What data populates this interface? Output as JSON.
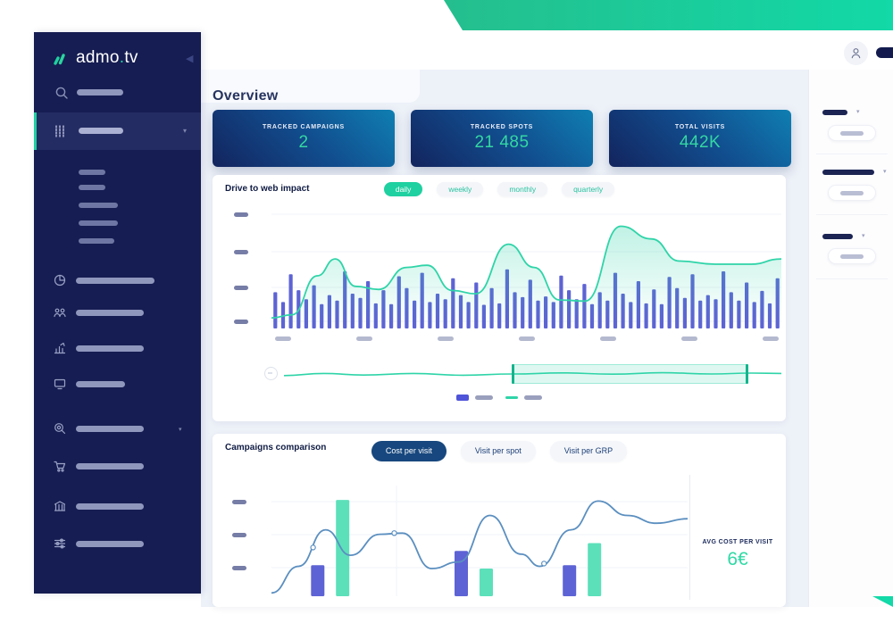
{
  "colors": {
    "sidebar_bg": "#161d52",
    "sidebar_active_bg": "#242c64",
    "accent_teal": "#1fd0a0",
    "purple_bar": "#5d63d4",
    "teal_line": "#2fd4a8",
    "mint_bar": "#5ce0ba",
    "blue_line": "#5b8fc0",
    "navy_text": "#101c44",
    "page_bg": "#edf1f8",
    "stat_gradient": [
      "#13245e",
      "#0f7fb2"
    ],
    "banner_gradient": [
      "#25be8d",
      "#12d9a7"
    ]
  },
  "sidebar": {
    "logo_text": "admo.tv",
    "collapse_glyph": "‹",
    "search_placeholder_width": 52,
    "active_item": {
      "icon": "equalizer-icon",
      "placeholder_width": 50,
      "caret": "▾"
    },
    "subitem_widths": [
      30,
      30,
      44,
      44,
      40
    ],
    "nav_items": [
      {
        "icon": "pie-chart-icon",
        "label_width": 88
      },
      {
        "icon": "audience-icon",
        "label_width": 76
      },
      {
        "icon": "bar-growth-icon",
        "label_width": 76
      },
      {
        "icon": "screen-icon",
        "label_width": 55
      },
      {
        "icon": "search-target-icon",
        "label_width": 76,
        "has_caret": true
      },
      {
        "icon": "cart-icon",
        "label_width": 76
      },
      {
        "icon": "bank-icon",
        "label_width": 76
      },
      {
        "icon": "sliders-icon",
        "label_width": 76
      }
    ]
  },
  "header": {
    "avatar_icon": "user-icon"
  },
  "overview": {
    "title": "Overview"
  },
  "stats": [
    {
      "label": "TRACKED CAMPAIGNS",
      "value": "2"
    },
    {
      "label": "TRACKED SPOTS",
      "value": "21 485"
    },
    {
      "label": "TOTAL VISITS",
      "value": "442K"
    }
  ],
  "drive": {
    "title": "Drive to web impact",
    "tabs": [
      {
        "label": "daily",
        "active": true
      },
      {
        "label": "weekly",
        "active": false
      },
      {
        "label": "monthly",
        "active": false
      },
      {
        "label": "quarterly",
        "active": false
      }
    ]
  },
  "campaigns": {
    "title": "Campaigns comparison",
    "tabs": [
      {
        "label": "Cost per visit",
        "active": true
      },
      {
        "label": "Visit per spot",
        "active": false
      },
      {
        "label": "Visit per GRP",
        "active": false
      }
    ],
    "avg_panel": {
      "label": "AVG COST PER VISIT",
      "value": "6€"
    }
  },
  "right_panel": {
    "groups": [
      {
        "label_width": 28,
        "has_caret": true,
        "pill_bar_width": 26
      },
      {
        "label_width": 58,
        "has_caret": true,
        "pill_bar_width": 26
      },
      {
        "label_width": 34,
        "has_caret": true,
        "pill_bar_width": 26
      }
    ]
  },
  "chart_data": [
    {
      "type": "bar",
      "id": "drive-to-web-impact",
      "title": "Drive to web impact (daily)",
      "note": "axis tick labels and legend labels are redacted placeholder bars in the screenshot; values are normalized 0-1 estimates from pixel heights",
      "bar_color": "#5d63d4",
      "values": [
        0.52,
        0.38,
        0.78,
        0.55,
        0.42,
        0.62,
        0.35,
        0.48,
        0.4,
        0.82,
        0.5,
        0.44,
        0.68,
        0.36,
        0.55,
        0.35,
        0.75,
        0.58,
        0.4,
        0.8,
        0.38,
        0.5,
        0.42,
        0.72,
        0.48,
        0.38,
        0.66,
        0.34,
        0.58,
        0.36,
        0.85,
        0.52,
        0.45,
        0.7,
        0.4,
        0.46,
        0.38,
        0.76,
        0.55,
        0.42,
        0.64,
        0.35,
        0.52,
        0.4,
        0.8,
        0.5,
        0.38,
        0.68,
        0.36,
        0.56,
        0.35,
        0.74,
        0.58,
        0.44,
        0.78,
        0.4,
        0.48,
        0.42,
        0.82,
        0.52,
        0.4,
        0.66,
        0.38,
        0.54,
        0.36,
        0.72
      ],
      "overlay_line": {
        "type": "area",
        "color": "#2fd4a8",
        "points": [
          [
            0,
            0.1
          ],
          [
            0.04,
            0.13
          ],
          [
            0.09,
            0.5
          ],
          [
            0.125,
            0.66
          ],
          [
            0.165,
            0.4
          ],
          [
            0.21,
            0.37
          ],
          [
            0.265,
            0.58
          ],
          [
            0.305,
            0.6
          ],
          [
            0.355,
            0.36
          ],
          [
            0.4,
            0.33
          ],
          [
            0.465,
            0.8
          ],
          [
            0.515,
            0.58
          ],
          [
            0.565,
            0.27
          ],
          [
            0.615,
            0.26
          ],
          [
            0.685,
            0.97
          ],
          [
            0.745,
            0.85
          ],
          [
            0.8,
            0.64
          ],
          [
            0.87,
            0.61
          ],
          [
            0.94,
            0.61
          ],
          [
            1,
            0.66
          ]
        ]
      },
      "x_ticks_placeholder_count": 7,
      "y_ticks_placeholder_count": 4,
      "legend_placeholder_entries": 2,
      "brush": {
        "line_points": [
          [
            0,
            0.35
          ],
          [
            0.08,
            0.55
          ],
          [
            0.16,
            0.4
          ],
          [
            0.26,
            0.55
          ],
          [
            0.36,
            0.38
          ],
          [
            0.46,
            0.5
          ],
          [
            0.56,
            0.6
          ],
          [
            0.66,
            0.48
          ],
          [
            0.76,
            0.62
          ],
          [
            0.86,
            0.5
          ],
          [
            0.94,
            0.58
          ],
          [
            1,
            0.55
          ]
        ],
        "selection_start": 0.46,
        "selection_end": 0.93
      }
    },
    {
      "type": "bar",
      "id": "campaigns-comparison",
      "title": "Campaigns comparison — Cost per visit",
      "series": [
        {
          "name": "series-1-redacted",
          "color": "#5d63d4",
          "x": [
            0.095,
            0.44,
            0.7
          ],
          "values": [
            0.28,
            0.41,
            0.28
          ]
        },
        {
          "name": "series-2-redacted",
          "color": "#5ce0ba",
          "x": [
            0.155,
            0.5,
            0.76
          ],
          "values": [
            0.87,
            0.25,
            0.48
          ]
        }
      ],
      "overlay_line": {
        "color": "#5b8fc0",
        "points": [
          [
            0,
            0.03
          ],
          [
            0.065,
            0.27
          ],
          [
            0.13,
            0.6
          ],
          [
            0.19,
            0.37
          ],
          [
            0.26,
            0.56
          ],
          [
            0.315,
            0.57
          ],
          [
            0.385,
            0.25
          ],
          [
            0.45,
            0.31
          ],
          [
            0.525,
            0.73
          ],
          [
            0.6,
            0.38
          ],
          [
            0.645,
            0.27
          ],
          [
            0.72,
            0.6
          ],
          [
            0.785,
            0.86
          ],
          [
            0.855,
            0.73
          ],
          [
            0.925,
            0.66
          ],
          [
            1,
            0.7
          ]
        ],
        "markers": [
          [
            0.1,
            0.44
          ],
          [
            0.295,
            0.57
          ],
          [
            0.655,
            0.295
          ]
        ]
      },
      "y_ticks_placeholder_count": 3,
      "avg_cost_per_visit": "6€"
    }
  ]
}
